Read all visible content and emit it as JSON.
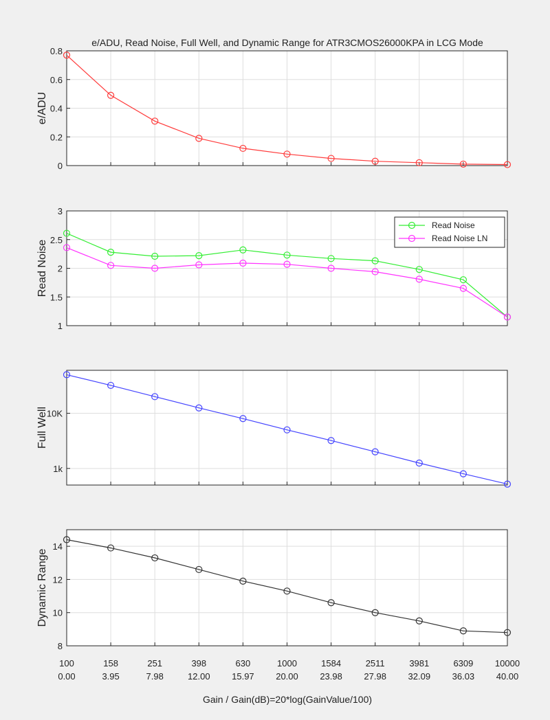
{
  "chart_data": {
    "title": "e/ADU, Read Noise, Full Well, and Dynamic Range for ATR3CMOS26000KPA in LCG Mode",
    "xlabel": "Gain / Gain(dB)=20*log(GainValue/100)",
    "x_tick_labels_gain": [
      "100",
      "158",
      "251",
      "398",
      "630",
      "1000",
      "1584",
      "2511",
      "3981",
      "6309",
      "10000"
    ],
    "x_tick_labels_db": [
      "0.00",
      "3.95",
      "7.98",
      "12.00",
      "15.97",
      "20.00",
      "23.98",
      "27.98",
      "32.09",
      "36.03",
      "40.00"
    ],
    "grid": true,
    "panels": [
      {
        "type": "line",
        "ylabel": "e/ADU",
        "ylim": [
          0,
          0.8
        ],
        "yticks": [
          0,
          0.2,
          0.4,
          0.6,
          0.8
        ],
        "ytick_labels": [
          "0",
          "0.2",
          "0.4",
          "0.6",
          "0.8"
        ],
        "yscale": "linear",
        "series": [
          {
            "color": "#ff3b3b",
            "values": [
              0.77,
              0.49,
              0.31,
              0.19,
              0.12,
              0.08,
              0.05,
              0.03,
              0.02,
              0.01,
              0.007
            ]
          }
        ]
      },
      {
        "type": "line",
        "ylabel": "Read Noise",
        "ylim": [
          1,
          3
        ],
        "yticks": [
          1,
          1.5,
          2,
          2.5,
          3
        ],
        "ytick_labels": [
          "1",
          "1.5",
          "2",
          "2.5",
          "3"
        ],
        "yscale": "linear",
        "legend_position": "top-right",
        "series": [
          {
            "name": "Read Noise",
            "color": "#33ee33",
            "values": [
              2.61,
              2.28,
              2.21,
              2.22,
              2.32,
              2.23,
              2.17,
              2.13,
              1.98,
              1.8,
              1.15
            ]
          },
          {
            "name": "Read Noise LN",
            "color": "#ff33ff",
            "values": [
              2.36,
              2.05,
              2.0,
              2.06,
              2.09,
              2.07,
              2.0,
              1.94,
              1.81,
              1.65,
              1.15
            ]
          }
        ]
      },
      {
        "type": "line",
        "ylabel": "Full Well",
        "ylim": [
          500,
          60000
        ],
        "yticks": [
          1000,
          10000
        ],
        "ytick_labels": [
          "1k",
          "10K"
        ],
        "yscale": "log",
        "series": [
          {
            "color": "#4444ff",
            "values": [
              50000,
              32000,
              20000,
              12500,
              8000,
              5000,
              3200,
              2000,
              1250,
              800,
              520
            ]
          }
        ]
      },
      {
        "type": "line",
        "ylabel": "Dynamic Range",
        "ylim": [
          8,
          15
        ],
        "yticks": [
          8,
          10,
          12,
          14
        ],
        "ytick_labels": [
          "8",
          "10",
          "12",
          "14"
        ],
        "yscale": "linear",
        "series": [
          {
            "color": "#333333",
            "values": [
              14.4,
              13.9,
              13.3,
              12.6,
              11.9,
              11.3,
              10.6,
              10.0,
              9.5,
              8.9,
              8.8
            ]
          }
        ]
      }
    ]
  }
}
